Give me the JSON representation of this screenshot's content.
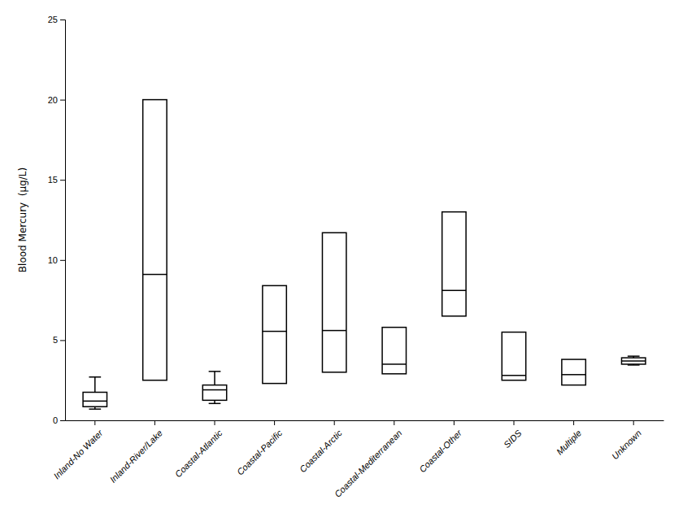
{
  "chart_data": {
    "type": "box",
    "categories": [
      "Inland-No Water",
      "Inland-River/Lake",
      "Coastal-Atlantic",
      "Coastal-Pacific",
      "Coastal-Arctic",
      "Coastal-Mediterranean",
      "Coastal-Other",
      "SIDS",
      "Multiple",
      "Unknown"
    ],
    "boxes": [
      {
        "whislo": 0.7,
        "q1": 0.85,
        "med": 1.2,
        "q3": 1.75,
        "whishi": 2.7
      },
      {
        "whislo": 2.5,
        "q1": 2.5,
        "med": 9.1,
        "q3": 20.0,
        "whishi": 20.0
      },
      {
        "whislo": 1.05,
        "q1": 1.25,
        "med": 1.9,
        "q3": 2.2,
        "whishi": 3.05
      },
      {
        "whislo": 2.3,
        "q1": 2.3,
        "med": 5.55,
        "q3": 8.4,
        "whishi": 8.4
      },
      {
        "whislo": 3.0,
        "q1": 3.0,
        "med": 5.6,
        "q3": 11.7,
        "whishi": 11.7
      },
      {
        "whislo": 2.9,
        "q1": 2.9,
        "med": 3.5,
        "q3": 5.8,
        "whishi": 5.8
      },
      {
        "whislo": 6.5,
        "q1": 6.5,
        "med": 8.1,
        "q3": 13.0,
        "whishi": 13.0
      },
      {
        "whislo": 2.5,
        "q1": 2.5,
        "med": 2.8,
        "q3": 5.5,
        "whishi": 5.5
      },
      {
        "whislo": 2.2,
        "q1": 2.2,
        "med": 2.85,
        "q3": 3.8,
        "whishi": 3.8
      },
      {
        "whislo": 3.45,
        "q1": 3.5,
        "med": 3.7,
        "q3": 3.9,
        "whishi": 4.0
      }
    ],
    "ylabel": "Blood Mercury  (μg/L)",
    "ylim": [
      0,
      25
    ],
    "yticks": [
      0,
      5,
      10,
      15,
      20,
      25
    ],
    "color": "#000000",
    "grid": false
  }
}
